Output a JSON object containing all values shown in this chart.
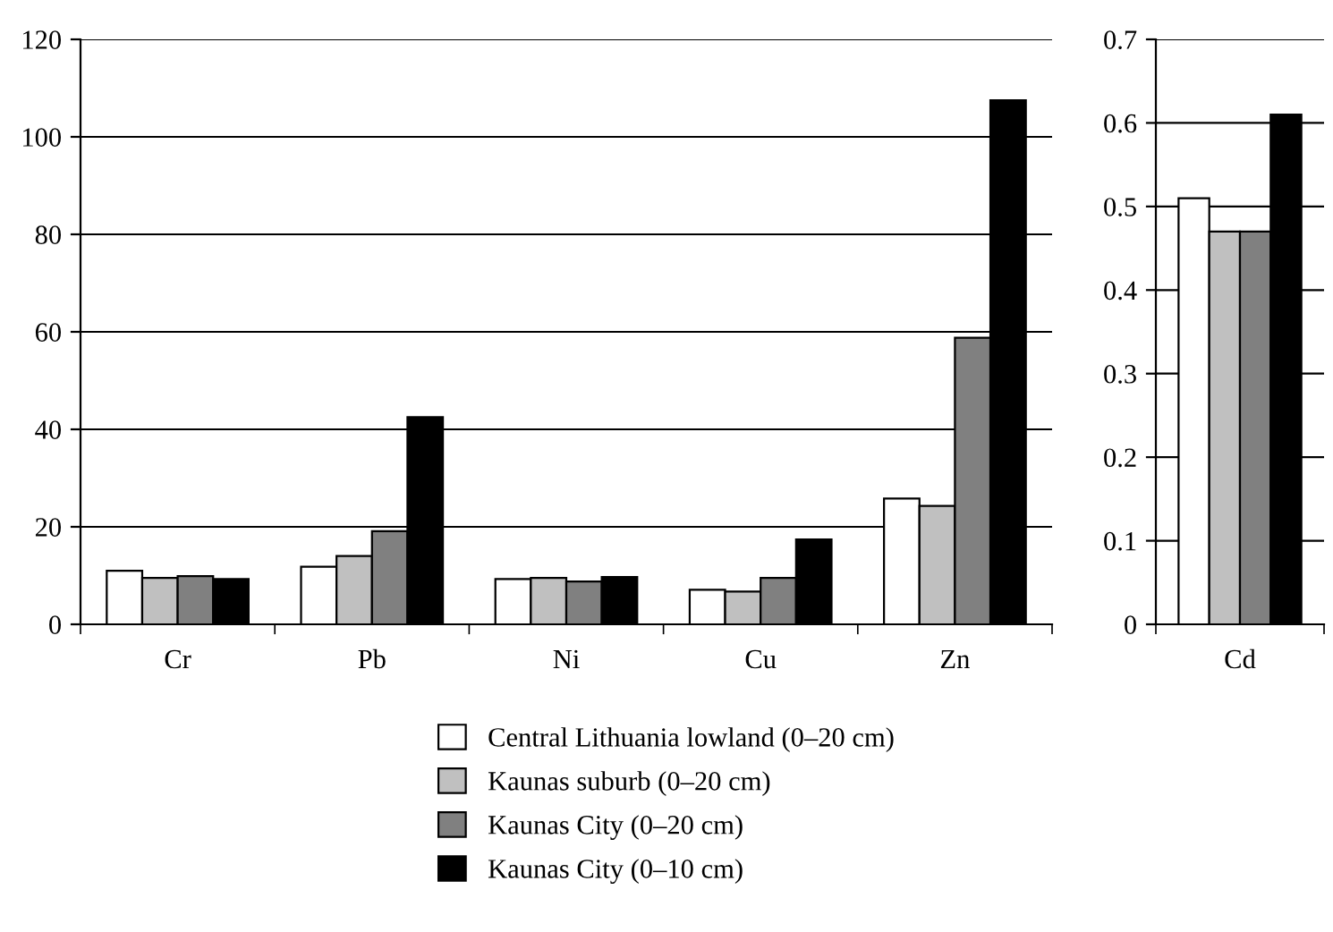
{
  "chart_data": [
    {
      "type": "bar",
      "categories": [
        "Cr",
        "Pb",
        "Ni",
        "Cu",
        "Zn"
      ],
      "series": [
        {
          "name": "Central Lithuania lowland (0–20 cm)",
          "color": "#ffffff",
          "values": [
            11.0,
            11.8,
            9.3,
            7.1,
            25.8
          ]
        },
        {
          "name": "Kaunas suburb (0–20 cm)",
          "color": "#c0c0c0",
          "values": [
            9.5,
            14.0,
            9.5,
            6.7,
            24.3
          ]
        },
        {
          "name": "Kaunas City (0–20 cm)",
          "color": "#808080",
          "values": [
            9.9,
            19.1,
            8.8,
            9.5,
            58.8
          ]
        },
        {
          "name": "Kaunas City (0–10 cm)",
          "color": "#000000",
          "values": [
            9.3,
            42.5,
            9.7,
            17.4,
            107.5
          ]
        }
      ],
      "ylim": [
        0,
        120
      ],
      "yticks": [
        0,
        20,
        40,
        60,
        80,
        100,
        120
      ],
      "grid": "y",
      "legend": "bottom"
    },
    {
      "type": "bar",
      "categories": [
        "Cd"
      ],
      "series": [
        {
          "color": "#ffffff",
          "values": [
            0.51
          ]
        },
        {
          "color": "#c0c0c0",
          "values": [
            0.47
          ]
        },
        {
          "color": "#808080",
          "values": [
            0.47
          ]
        },
        {
          "color": "#000000",
          "values": [
            0.61
          ]
        }
      ],
      "ylim": [
        0,
        0.7
      ],
      "yticks": [
        0,
        0.1,
        0.2,
        0.3,
        0.4,
        0.5,
        0.6,
        0.7
      ],
      "grid": "y"
    }
  ]
}
